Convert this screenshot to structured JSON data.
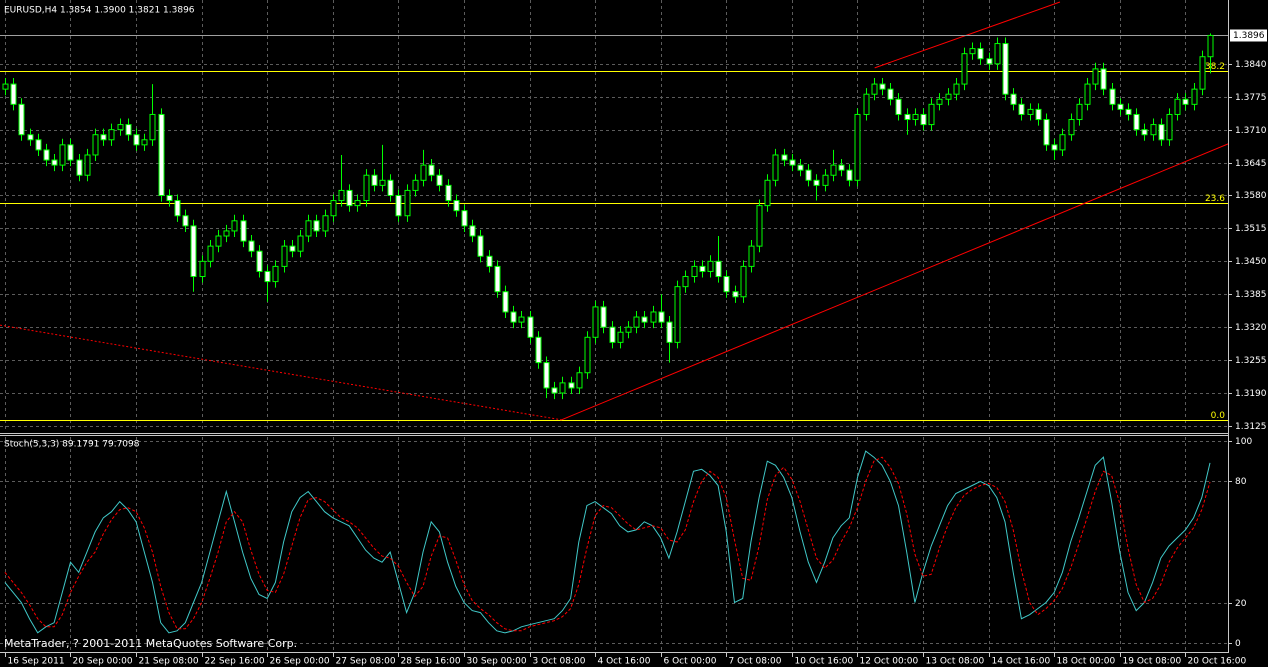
{
  "chart_data": [
    {
      "type": "candlestick",
      "title": "EURUSD,H4  1.3854 1.3900 1.3821 1.3896",
      "color": "#00ff00",
      "bull_color": "#000000",
      "bear_color": "#ffffff",
      "grid": true,
      "xlim": [
        -0.6,
        149.2
      ],
      "xticks": [
        {
          "value": 0,
          "label": "16 Sep 2011"
        },
        {
          "value": 8,
          "label": "20 Sep 00:00"
        },
        {
          "value": 16,
          "label": "21 Sep 08:00"
        },
        {
          "value": 24,
          "label": "22 Sep 16:00"
        },
        {
          "value": 32,
          "label": "26 Sep 00:00"
        },
        {
          "value": 40,
          "label": "27 Sep 08:00"
        },
        {
          "value": 48,
          "label": "28 Sep 16:00"
        },
        {
          "value": 56,
          "label": "30 Sep 00:00"
        },
        {
          "value": 64,
          "label": "3 Oct 08:00"
        },
        {
          "value": 72,
          "label": "4 Oct 16:00"
        },
        {
          "value": 80,
          "label": "6 Oct 00:00"
        },
        {
          "value": 88,
          "label": "7 Oct 08:00"
        },
        {
          "value": 96,
          "label": "10 Oct 16:00"
        },
        {
          "value": 104,
          "label": "12 Oct 00:00"
        },
        {
          "value": 112,
          "label": "13 Oct 08:00"
        },
        {
          "value": 120,
          "label": "14 Oct 16:00"
        },
        {
          "value": 128,
          "label": "18 Oct 00:00"
        },
        {
          "value": 136,
          "label": "19 Oct 08:00"
        },
        {
          "value": 144,
          "label": "20 Oct 16:00"
        }
      ],
      "ylim": [
        1.3113,
        1.3966
      ],
      "yticks": [
        {
          "value": 1.384,
          "label": "1.3840"
        },
        {
          "value": 1.3775,
          "label": "1.3775"
        },
        {
          "value": 1.371,
          "label": "1.3710"
        },
        {
          "value": 1.3645,
          "label": "1.3645"
        },
        {
          "value": 1.358,
          "label": "1.3580"
        },
        {
          "value": 1.3515,
          "label": "1.3515"
        },
        {
          "value": 1.345,
          "label": "1.3450"
        },
        {
          "value": 1.3385,
          "label": "1.3385"
        },
        {
          "value": 1.332,
          "label": "1.3320"
        },
        {
          "value": 1.3255,
          "label": "1.3255"
        },
        {
          "value": 1.319,
          "label": "1.3190"
        },
        {
          "value": 1.3125,
          "label": "1.3125"
        }
      ],
      "current_price": 1.3896,
      "level_color": "#ffff00",
      "levels": [
        {
          "value": 1.3826,
          "label": "38.2"
        },
        {
          "value": 1.3565,
          "label": "23.6"
        },
        {
          "value": 1.3137,
          "label": "0.0"
        }
      ],
      "trendlines": [
        {
          "color": "#ff0000",
          "style": "solid",
          "points": [
            [
              67.9,
              1.3137
            ],
            [
              154,
              1.3714
            ]
          ]
        },
        {
          "color": "#ff0000",
          "style": "solid",
          "points": [
            [
              106.1,
              1.3832
            ],
            [
              128.7,
              1.3962
            ]
          ]
        },
        {
          "color": "#ff0000",
          "style": "dotted",
          "points": [
            [
              -0.6,
              1.3324
            ],
            [
              67.9,
              1.3137
            ]
          ]
        }
      ],
      "open": [
        1.379,
        1.38,
        1.376,
        1.37,
        1.369,
        1.367,
        1.365,
        1.364,
        1.368,
        1.365,
        1.362,
        1.366,
        1.37,
        1.369,
        1.371,
        1.372,
        1.37,
        1.368,
        1.369,
        1.374,
        1.358,
        1.357,
        1.354,
        1.352,
        1.342,
        1.345,
        1.348,
        1.35,
        1.351,
        1.353,
        1.349,
        1.347,
        1.343,
        1.341,
        1.344,
        1.348,
        1.347,
        1.35,
        1.353,
        1.351,
        1.354,
        1.357,
        1.359,
        1.356,
        1.357,
        1.362,
        1.36,
        1.361,
        1.358,
        1.354,
        1.359,
        1.361,
        1.364,
        1.362,
        1.36,
        1.357,
        1.355,
        1.352,
        1.35,
        1.346,
        1.344,
        1.339,
        1.335,
        1.333,
        1.334,
        1.33,
        1.325,
        1.32,
        1.319,
        1.321,
        1.32,
        1.323,
        1.33,
        1.336,
        1.332,
        1.329,
        1.331,
        1.332,
        1.334,
        1.333,
        1.335,
        1.333,
        1.329,
        1.34,
        1.342,
        1.344,
        1.343,
        1.345,
        1.342,
        1.339,
        1.338,
        1.344,
        1.348,
        1.356,
        1.361,
        1.366,
        1.365,
        1.364,
        1.363,
        1.361,
        1.36,
        1.362,
        1.364,
        1.363,
        1.361,
        1.374,
        1.378,
        1.38,
        1.379,
        1.377,
        1.374,
        1.373,
        1.374,
        1.372,
        1.376,
        1.377,
        1.378,
        1.38,
        1.386,
        1.387,
        1.385,
        1.384,
        1.388,
        1.378,
        1.376,
        1.374,
        1.375,
        1.373,
        1.368,
        1.367,
        1.37,
        1.373,
        1.376,
        1.38,
        1.383,
        1.379,
        1.376,
        1.375,
        1.374,
        1.371,
        1.37,
        1.372,
        1.369,
        1.374,
        1.377,
        1.376,
        1.379,
        1.3854
      ],
      "high": [
        1.3812,
        1.3812,
        1.3772,
        1.3712,
        1.3702,
        1.3682,
        1.3662,
        1.3692,
        1.3692,
        1.3662,
        1.3672,
        1.3712,
        1.3712,
        1.3722,
        1.3732,
        1.3732,
        1.3712,
        1.3702,
        1.38,
        1.3752,
        1.3592,
        1.3582,
        1.3552,
        1.3532,
        1.3462,
        1.3492,
        1.3512,
        1.3522,
        1.3542,
        1.3542,
        1.3502,
        1.3482,
        1.3442,
        1.3452,
        1.3492,
        1.3492,
        1.3512,
        1.3542,
        1.3542,
        1.3552,
        1.3582,
        1.366,
        1.3602,
        1.3582,
        1.3632,
        1.3632,
        1.368,
        1.3622,
        1.3592,
        1.3602,
        1.3622,
        1.367,
        1.3652,
        1.3632,
        1.3612,
        1.3582,
        1.3562,
        1.3532,
        1.3512,
        1.3472,
        1.3452,
        1.3402,
        1.3362,
        1.3352,
        1.3352,
        1.3312,
        1.3262,
        1.3212,
        1.3222,
        1.3222,
        1.3242,
        1.3312,
        1.3372,
        1.3372,
        1.3332,
        1.3322,
        1.3332,
        1.3352,
        1.3352,
        1.3362,
        1.3385,
        1.3342,
        1.3412,
        1.3432,
        1.3452,
        1.3452,
        1.3462,
        1.35,
        1.3432,
        1.3402,
        1.3452,
        1.3492,
        1.3572,
        1.3622,
        1.3672,
        1.3672,
        1.3662,
        1.3652,
        1.3642,
        1.3622,
        1.3632,
        1.367,
        1.3652,
        1.3642,
        1.3752,
        1.3792,
        1.3812,
        1.3812,
        1.3802,
        1.3782,
        1.3752,
        1.3752,
        1.3752,
        1.3772,
        1.3782,
        1.3792,
        1.3812,
        1.3872,
        1.3882,
        1.3882,
        1.3862,
        1.3892,
        1.3892,
        1.3792,
        1.3772,
        1.3762,
        1.3762,
        1.3742,
        1.3692,
        1.3712,
        1.3742,
        1.3772,
        1.3812,
        1.3842,
        1.3842,
        1.3802,
        1.3772,
        1.3762,
        1.3752,
        1.3722,
        1.3732,
        1.3732,
        1.3752,
        1.3782,
        1.3782,
        1.3802,
        1.3866,
        1.39
      ],
      "low": [
        1.3778,
        1.3748,
        1.3688,
        1.3678,
        1.3658,
        1.3638,
        1.3628,
        1.3628,
        1.3638,
        1.3608,
        1.3608,
        1.3648,
        1.3678,
        1.3678,
        1.3698,
        1.3688,
        1.3668,
        1.3668,
        1.3678,
        1.3568,
        1.3558,
        1.3528,
        1.3508,
        1.339,
        1.3408,
        1.3438,
        1.3468,
        1.3488,
        1.3498,
        1.3478,
        1.3458,
        1.3418,
        1.337,
        1.3398,
        1.3428,
        1.3458,
        1.3458,
        1.3488,
        1.3498,
        1.3498,
        1.3528,
        1.3558,
        1.3548,
        1.3548,
        1.3558,
        1.3588,
        1.3588,
        1.3568,
        1.3528,
        1.3528,
        1.3578,
        1.3598,
        1.3608,
        1.3588,
        1.3558,
        1.3538,
        1.3508,
        1.3488,
        1.3448,
        1.3428,
        1.3378,
        1.3338,
        1.3318,
        1.3318,
        1.3288,
        1.3238,
        1.318,
        1.3178,
        1.3178,
        1.3188,
        1.3188,
        1.3218,
        1.3288,
        1.3308,
        1.3278,
        1.3278,
        1.3298,
        1.3308,
        1.3318,
        1.3318,
        1.3318,
        1.325,
        1.3278,
        1.3388,
        1.3408,
        1.3418,
        1.3418,
        1.3408,
        1.3378,
        1.3368,
        1.3368,
        1.3428,
        1.3468,
        1.3548,
        1.3598,
        1.3638,
        1.3628,
        1.3618,
        1.3598,
        1.357,
        1.3588,
        1.3608,
        1.3618,
        1.3598,
        1.3598,
        1.3728,
        1.3768,
        1.3778,
        1.3758,
        1.3728,
        1.37,
        1.3718,
        1.3708,
        1.3708,
        1.3748,
        1.3758,
        1.3768,
        1.3788,
        1.3848,
        1.3838,
        1.3828,
        1.3828,
        1.3768,
        1.3748,
        1.3728,
        1.3728,
        1.3718,
        1.3668,
        1.365,
        1.3658,
        1.3688,
        1.3718,
        1.3748,
        1.3788,
        1.3778,
        1.3748,
        1.3738,
        1.3728,
        1.3698,
        1.3688,
        1.3688,
        1.3678,
        1.3678,
        1.3728,
        1.3748,
        1.3748,
        1.3778,
        1.3821
      ],
      "close": [
        1.38,
        1.376,
        1.37,
        1.369,
        1.367,
        1.365,
        1.364,
        1.368,
        1.365,
        1.362,
        1.366,
        1.37,
        1.369,
        1.371,
        1.372,
        1.37,
        1.368,
        1.369,
        1.374,
        1.358,
        1.357,
        1.354,
        1.352,
        1.342,
        1.345,
        1.348,
        1.35,
        1.351,
        1.353,
        1.349,
        1.347,
        1.343,
        1.341,
        1.344,
        1.348,
        1.347,
        1.35,
        1.353,
        1.351,
        1.354,
        1.357,
        1.359,
        1.356,
        1.357,
        1.362,
        1.36,
        1.361,
        1.358,
        1.354,
        1.359,
        1.361,
        1.364,
        1.362,
        1.36,
        1.357,
        1.355,
        1.352,
        1.35,
        1.346,
        1.344,
        1.339,
        1.335,
        1.333,
        1.334,
        1.33,
        1.325,
        1.32,
        1.319,
        1.321,
        1.32,
        1.323,
        1.33,
        1.336,
        1.332,
        1.329,
        1.331,
        1.332,
        1.334,
        1.333,
        1.335,
        1.333,
        1.329,
        1.34,
        1.342,
        1.344,
        1.343,
        1.345,
        1.342,
        1.339,
        1.338,
        1.344,
        1.348,
        1.356,
        1.361,
        1.366,
        1.365,
        1.364,
        1.363,
        1.361,
        1.36,
        1.362,
        1.364,
        1.363,
        1.361,
        1.374,
        1.378,
        1.38,
        1.379,
        1.377,
        1.374,
        1.373,
        1.374,
        1.372,
        1.376,
        1.377,
        1.378,
        1.38,
        1.386,
        1.387,
        1.385,
        1.384,
        1.388,
        1.378,
        1.376,
        1.374,
        1.375,
        1.373,
        1.368,
        1.367,
        1.37,
        1.373,
        1.376,
        1.38,
        1.383,
        1.379,
        1.376,
        1.375,
        1.374,
        1.371,
        1.37,
        1.372,
        1.369,
        1.374,
        1.377,
        1.376,
        1.379,
        1.3854,
        1.3896
      ]
    },
    {
      "type": "line",
      "title": "Stoch(5,3,3) 89.1791 79.7098",
      "grid": true,
      "ylim": [
        -4.5,
        102
      ],
      "yticks": [
        0,
        20,
        80,
        100
      ],
      "series": [
        {
          "color": "#40c8c8",
          "style": "solid",
          "values": [
            30,
            25,
            20,
            12,
            5,
            8,
            10,
            25,
            40,
            35,
            45,
            55,
            62,
            65,
            70,
            66,
            60,
            45,
            30,
            10,
            5,
            6,
            10,
            20,
            30,
            45,
            60,
            75,
            60,
            45,
            32,
            24,
            22,
            30,
            50,
            65,
            72,
            75,
            70,
            65,
            62,
            60,
            58,
            52,
            46,
            42,
            40,
            45,
            30,
            15,
            25,
            45,
            60,
            55,
            40,
            28,
            20,
            16,
            15,
            10,
            6,
            5,
            6,
            8,
            9,
            10,
            11,
            12,
            16,
            22,
            50,
            68,
            70,
            67,
            64,
            58,
            55,
            56,
            60,
            58,
            52,
            42,
            55,
            70,
            85,
            86,
            83,
            78,
            55,
            20,
            22,
            50,
            72,
            90,
            88,
            82,
            72,
            55,
            40,
            30,
            40,
            52,
            58,
            62,
            82,
            95,
            92,
            88,
            80,
            68,
            45,
            20,
            35,
            48,
            58,
            68,
            74,
            76,
            78,
            80,
            78,
            72,
            60,
            35,
            12,
            14,
            17,
            20,
            25,
            35,
            50,
            62,
            75,
            88,
            92,
            70,
            45,
            25,
            16,
            20,
            30,
            42,
            48,
            52,
            56,
            62,
            72,
            89.1791
          ]
        },
        {
          "color": "#ff0000",
          "style": "dashed",
          "values": [
            35,
            30,
            25,
            19,
            12,
            8,
            8,
            14,
            25,
            33,
            40,
            45,
            54,
            61,
            66,
            67,
            65,
            57,
            45,
            28,
            15,
            7,
            7,
            12,
            20,
            32,
            45,
            60,
            65,
            60,
            46,
            34,
            26,
            25,
            34,
            48,
            62,
            71,
            72,
            70,
            66,
            62,
            60,
            57,
            52,
            47,
            43,
            42,
            38,
            30,
            23,
            28,
            43,
            53,
            52,
            41,
            29,
            21,
            17,
            14,
            10,
            7,
            6,
            6,
            8,
            9,
            10,
            11,
            13,
            17,
            29,
            47,
            63,
            68,
            67,
            63,
            59,
            56,
            57,
            58,
            57,
            51,
            50,
            56,
            70,
            80,
            85,
            82,
            72,
            51,
            32,
            31,
            48,
            71,
            83,
            87,
            81,
            70,
            56,
            42,
            37,
            41,
            50,
            57,
            67,
            80,
            90,
            92,
            87,
            79,
            64,
            44,
            33,
            34,
            47,
            58,
            67,
            73,
            76,
            78,
            79,
            77,
            70,
            56,
            36,
            20,
            14,
            17,
            21,
            27,
            37,
            49,
            62,
            75,
            85,
            83,
            69,
            47,
            29,
            20,
            22,
            29,
            40,
            47,
            52,
            57,
            66,
            79.7098
          ]
        }
      ]
    }
  ],
  "copyright": "MetaTrader, ? 2001-2011 MetaQuotes Software Corp."
}
